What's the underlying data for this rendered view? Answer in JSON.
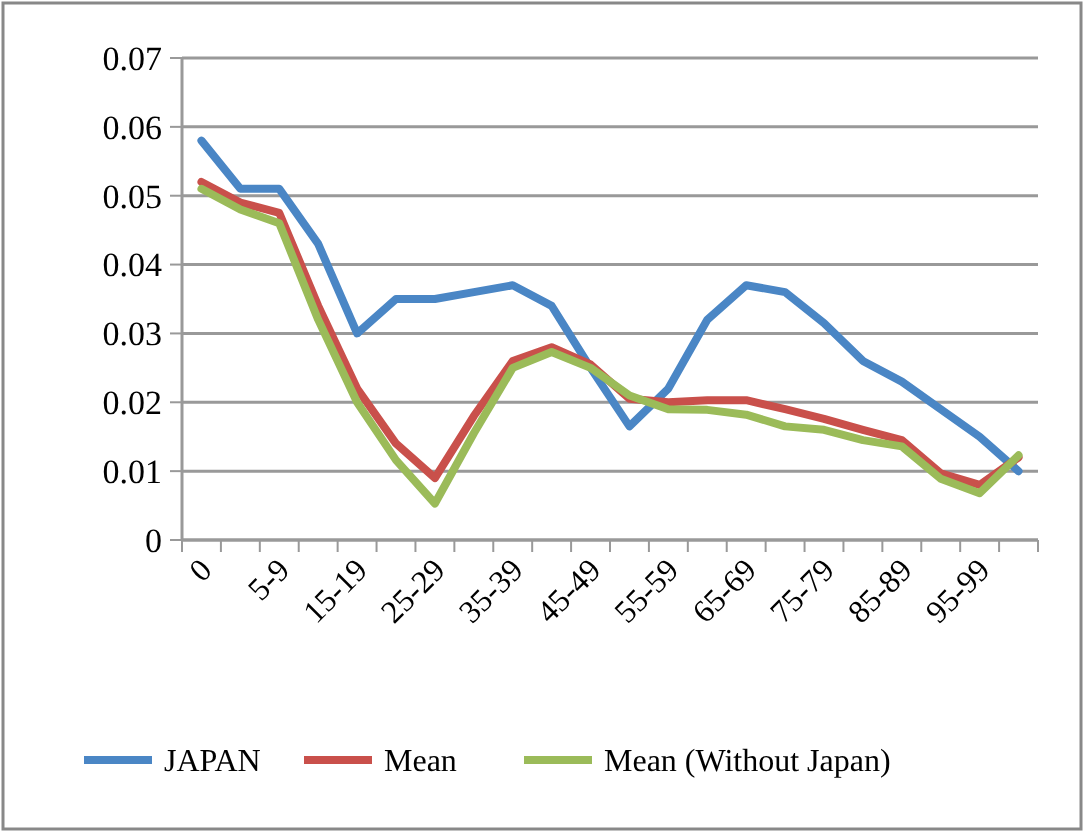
{
  "chart_data": {
    "type": "line",
    "categories": [
      "0",
      null,
      "5-9",
      null,
      "15-19",
      null,
      "25-29",
      null,
      "35-39",
      null,
      "45-49",
      null,
      "55-59",
      null,
      "65-69",
      null,
      "75-79",
      null,
      "85-89",
      null,
      "95-99",
      null
    ],
    "series": [
      {
        "name": "JAPAN",
        "color": "#4a86c5",
        "values": [
          0.058,
          0.051,
          0.051,
          0.043,
          0.03,
          0.035,
          0.035,
          0.036,
          0.037,
          0.034,
          0.025,
          0.0165,
          0.022,
          0.032,
          0.037,
          0.036,
          0.0315,
          0.026,
          0.023,
          0.019,
          0.015,
          0.01
        ]
      },
      {
        "name": "Mean",
        "color": "#c9504b",
        "values": [
          0.052,
          0.049,
          0.0475,
          0.034,
          0.022,
          0.014,
          0.009,
          0.018,
          0.026,
          0.028,
          0.0255,
          0.0205,
          0.02,
          0.0203,
          0.0203,
          0.019,
          0.0176,
          0.016,
          0.0145,
          0.0097,
          0.008,
          0.012
        ]
      },
      {
        "name": "Mean (Without Japan)",
        "color": "#9bbb59",
        "values": [
          0.051,
          0.048,
          0.046,
          0.032,
          0.02,
          0.0116,
          0.0053,
          0.0155,
          0.025,
          0.0273,
          0.025,
          0.021,
          0.019,
          0.0189,
          0.0182,
          0.0165,
          0.016,
          0.0145,
          0.0136,
          0.0089,
          0.0068,
          0.0123
        ]
      }
    ],
    "ylim": [
      0,
      0.07
    ],
    "yticks": [
      0,
      0.01,
      0.02,
      0.03,
      0.04,
      0.05,
      0.06,
      0.07
    ],
    "grid": "y",
    "legend": "bottom",
    "marker": "none",
    "line_style": "solid"
  }
}
